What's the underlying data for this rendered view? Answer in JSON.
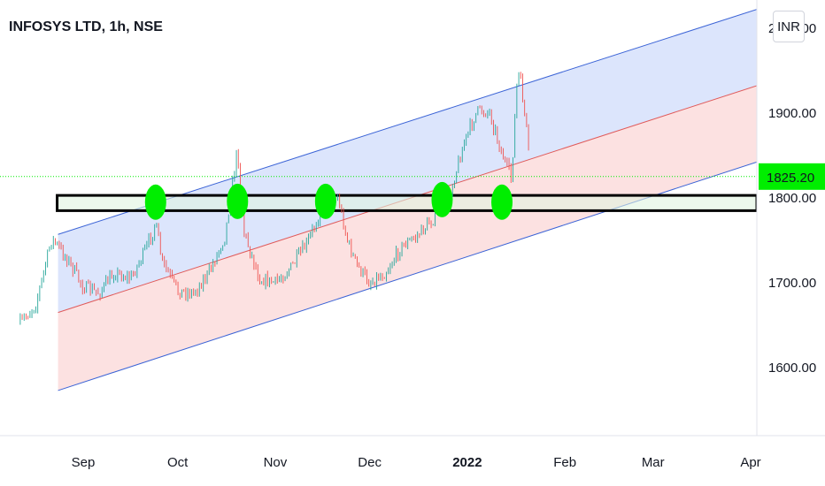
{
  "header": {
    "symbol_title": "INFOSYS LTD, 1h, NSE",
    "currency_button": "INR"
  },
  "colors": {
    "up_candle": "#26a69a",
    "down_candle": "#ef5350",
    "upper_channel_fill": "#d6e0fb",
    "lower_channel_fill": "#fbdcdc",
    "channel_line": "#3b63d6",
    "median_line": "#e05a5a",
    "marker": "#00ee00",
    "zone_fill": "#dff3e0",
    "price_badge": "#00ee00"
  },
  "chart_data": {
    "type": "line",
    "title": "INFOSYS LTD, 1h, NSE",
    "ylabel": "",
    "xlabel": "",
    "ylim": [
      1530,
      2040
    ],
    "y_ticks": [
      1600,
      1700,
      1800,
      1900,
      2000
    ],
    "y_tick_labels": [
      "1600.00",
      "1700.00",
      "1800.00",
      "1900.00",
      "2000.00"
    ],
    "x_tick_labels": [
      "Sep",
      "Oct",
      "Nov",
      "Dec",
      "2022",
      "Feb",
      "Mar",
      "Apr"
    ],
    "last_price": 1825.2,
    "last_price_label": "1825.20",
    "series": [
      {
        "name": "",
        "x": [
          "2021-08-12",
          "2021-08-17",
          "2021-08-22",
          "2021-08-27",
          "2021-09-01",
          "2021-09-06",
          "2021-09-11",
          "2021-09-16",
          "2021-09-21",
          "2021-09-24",
          "2021-09-26",
          "2021-10-01",
          "2021-10-06",
          "2021-10-11",
          "2021-10-16",
          "2021-10-20",
          "2021-10-22",
          "2021-10-27",
          "2021-11-01",
          "2021-11-06",
          "2021-11-11",
          "2021-11-16",
          "2021-11-21",
          "2021-11-24",
          "2021-11-27",
          "2021-12-01",
          "2021-12-06",
          "2021-12-11",
          "2021-12-16",
          "2021-12-21",
          "2021-12-26",
          "2021-12-31",
          "2022-01-04",
          "2022-01-08",
          "2022-01-12",
          "2022-01-15",
          "2022-01-17",
          "2022-01-18",
          "2022-01-20",
          "2022-01-21"
        ],
        "values": [
          1652,
          1675,
          1752,
          1728,
          1695,
          1688,
          1712,
          1705,
          1740,
          1770,
          1725,
          1690,
          1688,
          1712,
          1755,
          1858,
          1760,
          1705,
          1700,
          1718,
          1745,
          1790,
          1800,
          1748,
          1720,
          1700,
          1712,
          1742,
          1755,
          1775,
          1800,
          1865,
          1902,
          1902,
          1852,
          1822,
          1950,
          1935,
          1875,
          1825
        ]
      }
    ],
    "channel_lines": [
      {
        "role": "upper",
        "start": {
          "x": "2021-08-24",
          "y": 1757
        },
        "end": {
          "x": "2022-04-01",
          "y": 2020
        }
      },
      {
        "role": "median",
        "start": {
          "x": "2021-08-24",
          "y": 1665
        },
        "end": {
          "x": "2022-04-01",
          "y": 1930
        }
      },
      {
        "role": "lower",
        "start": {
          "x": "2021-08-24",
          "y": 1573
        },
        "end": {
          "x": "2022-04-01",
          "y": 1840
        }
      }
    ],
    "support_zone": {
      "y_from": 1785,
      "y_to": 1803,
      "x_start": "2021-08-24"
    },
    "touch_markers": [
      {
        "x": "2021-09-24",
        "y": 1795
      },
      {
        "x": "2021-10-20",
        "y": 1796
      },
      {
        "x": "2021-11-17",
        "y": 1796
      },
      {
        "x": "2021-12-24",
        "y": 1798
      },
      {
        "x": "2022-01-12",
        "y": 1795
      }
    ],
    "grid": false
  }
}
